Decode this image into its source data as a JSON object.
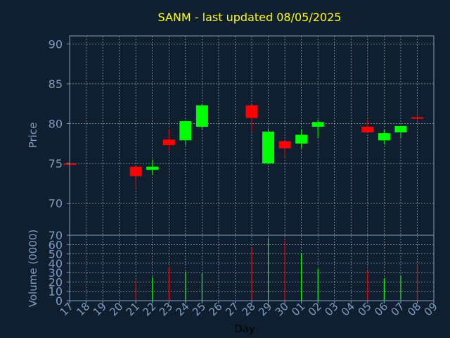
{
  "chart_data": [
    {
      "type": "candlestick",
      "title": "SANM - last updated 08/05/2025",
      "ylabel": "Price",
      "ylim": [
        66,
        91
      ],
      "yticks": [
        70,
        75,
        80,
        85,
        90
      ],
      "grid": true,
      "x_labels": [
        "17",
        "18",
        "19",
        "20",
        "21",
        "22",
        "23",
        "24",
        "25",
        "26",
        "27",
        "28",
        "29",
        "30",
        "01",
        "02",
        "03",
        "04",
        "05",
        "06",
        "07",
        "08",
        "09"
      ],
      "candles": [
        {
          "x": "17",
          "open": 75.0,
          "high": 75.0,
          "low": 75.0,
          "close": 74.9
        },
        {
          "x": "21",
          "open": 74.6,
          "high": 74.6,
          "low": 71.8,
          "close": 73.4
        },
        {
          "x": "22",
          "open": 74.2,
          "high": 75.5,
          "low": 73.6,
          "close": 74.6
        },
        {
          "x": "23",
          "open": 78.0,
          "high": 79.3,
          "low": 76.6,
          "close": 77.3
        },
        {
          "x": "24",
          "open": 77.9,
          "high": 80.3,
          "low": 77.3,
          "close": 80.3
        },
        {
          "x": "25",
          "open": 79.6,
          "high": 82.4,
          "low": 79.2,
          "close": 82.3
        },
        {
          "x": "28",
          "open": 82.3,
          "high": 82.3,
          "low": 79.0,
          "close": 80.7
        },
        {
          "x": "29",
          "open": 75.0,
          "high": 79.4,
          "low": 74.9,
          "close": 79.0
        },
        {
          "x": "30",
          "open": 77.8,
          "high": 77.8,
          "low": 75.8,
          "close": 76.9
        },
        {
          "x": "01",
          "open": 77.5,
          "high": 79.3,
          "low": 76.9,
          "close": 78.6
        },
        {
          "x": "02",
          "open": 79.6,
          "high": 80.5,
          "low": 78.2,
          "close": 80.2
        },
        {
          "x": "05",
          "open": 79.6,
          "high": 80.5,
          "low": 78.8,
          "close": 78.9
        },
        {
          "x": "06",
          "open": 77.9,
          "high": 79.2,
          "low": 77.4,
          "close": 78.8
        },
        {
          "x": "07",
          "open": 78.9,
          "high": 79.7,
          "low": 78.2,
          "close": 79.7
        },
        {
          "x": "08",
          "open": 80.8,
          "high": 81.8,
          "low": 79.9,
          "close": 80.6
        }
      ]
    },
    {
      "type": "bar",
      "ylabel": "Volume (0000)",
      "xlabel": "Day",
      "ylim": [
        0,
        70
      ],
      "yticks": [
        0,
        10,
        20,
        30,
        40,
        50,
        60,
        70
      ],
      "grid": true,
      "bars": [
        {
          "x": "21",
          "value": 22
        },
        {
          "x": "22",
          "value": 25
        },
        {
          "x": "23",
          "value": 35
        },
        {
          "x": "24",
          "value": 31
        },
        {
          "x": "25",
          "value": 29
        },
        {
          "x": "28",
          "value": 57
        },
        {
          "x": "29",
          "value": 67
        },
        {
          "x": "30",
          "value": 64
        },
        {
          "x": "01",
          "value": 50
        },
        {
          "x": "02",
          "value": 34
        },
        {
          "x": "05",
          "value": 32
        },
        {
          "x": "06",
          "value": 24
        },
        {
          "x": "07",
          "value": 27
        },
        {
          "x": "08",
          "value": 39
        }
      ]
    }
  ],
  "colors": {
    "background": "#0f1f30",
    "axis": "#7f9cc0",
    "grid": "#ffffff",
    "title": "#ffff00",
    "label": "#7f9cc0",
    "xlabel": "#000000",
    "up": "#00ff00",
    "down": "#ff0000"
  }
}
